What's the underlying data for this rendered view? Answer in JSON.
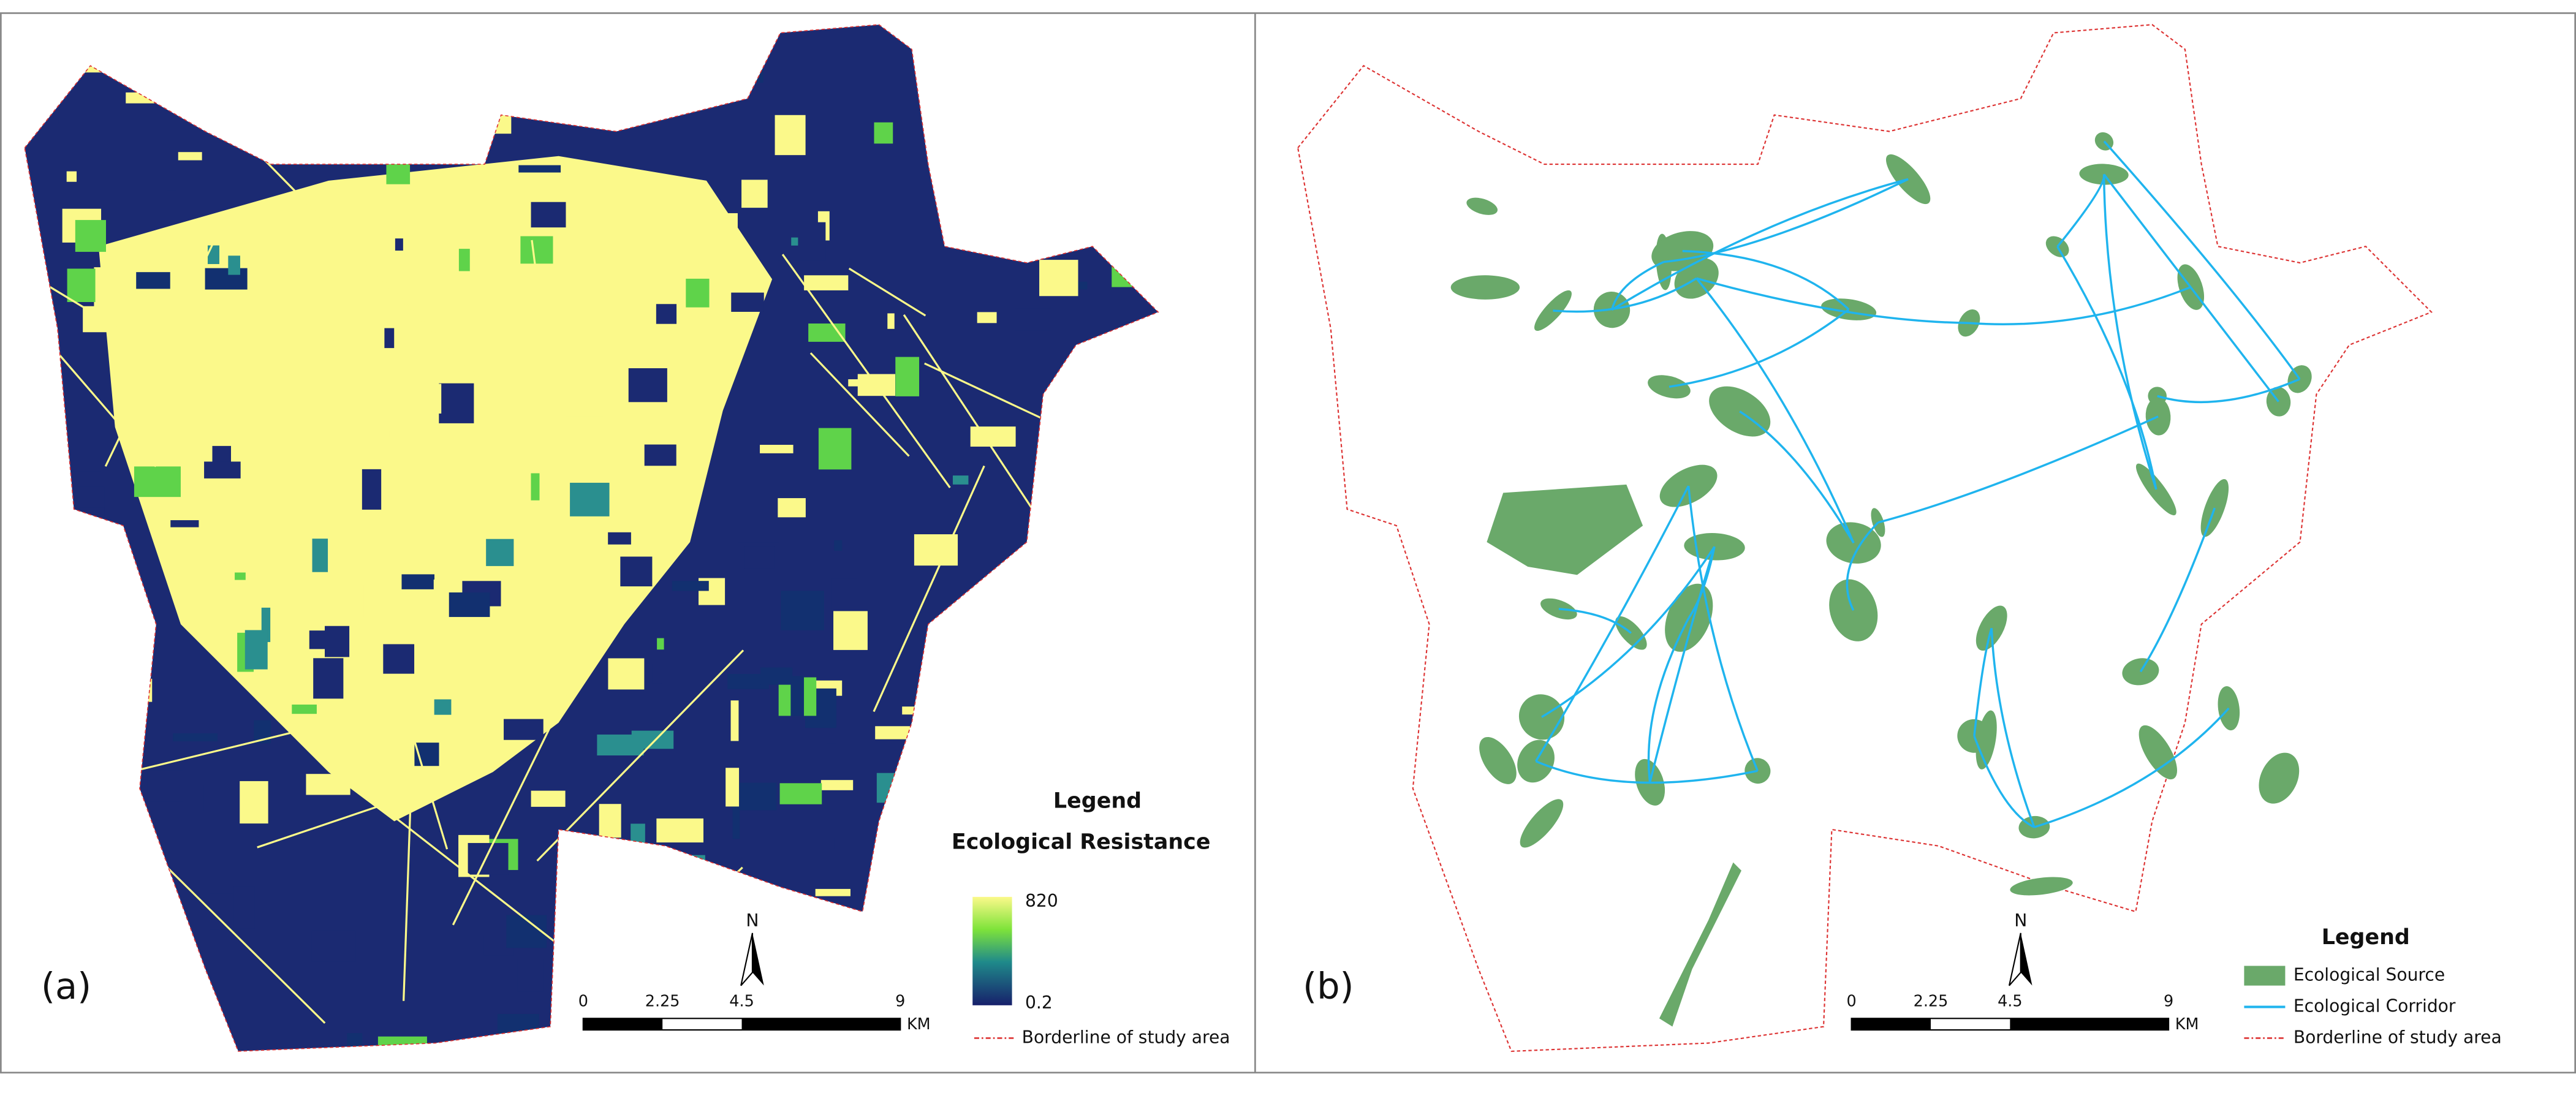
{
  "panels": [
    {
      "label": "(a)",
      "north": "N",
      "scale": {
        "ticks": [
          "0",
          "2.25",
          "4.5",
          "9"
        ],
        "unit": "KM"
      },
      "legend": {
        "title": "Legend",
        "subtitle": "Ecological Resistance",
        "max": "820",
        "min": "0.2",
        "border": "Borderline of study area"
      }
    },
    {
      "label": "(b)",
      "north": "N",
      "scale": {
        "ticks": [
          "0",
          "2.25",
          "4.5",
          "9"
        ],
        "unit": "KM"
      },
      "legend": {
        "title": "Legend",
        "items": [
          "Ecological Source",
          "Ecological Corridor",
          "Borderline of study area"
        ]
      }
    }
  ]
}
